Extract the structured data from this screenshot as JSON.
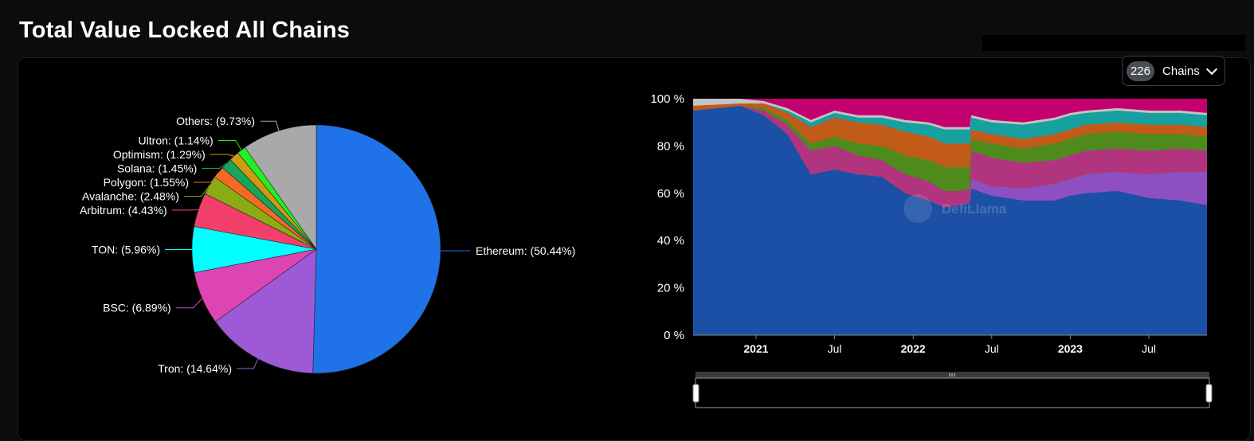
{
  "page": {
    "title": "Total Value Locked All Chains"
  },
  "controls": {
    "chains_count": "226",
    "chains_label": "Chains"
  },
  "watermark": "DefiLlama",
  "chart_data": [
    {
      "type": "pie",
      "slices": [
        {
          "name": "Ethereum",
          "percent": 50.44,
          "label": "Ethereum: (50.44%)",
          "color": "#1f72e8"
        },
        {
          "name": "Tron",
          "percent": 14.64,
          "label": "Tron: (14.64%)",
          "color": "#9e5ad6"
        },
        {
          "name": "BSC",
          "percent": 6.89,
          "label": "BSC: (6.89%)",
          "color": "#dd44b4"
        },
        {
          "name": "TON",
          "percent": 5.96,
          "label": "TON: (5.96%)",
          "color": "#00ffff"
        },
        {
          "name": "Arbitrum",
          "percent": 4.43,
          "label": "Arbitrum: (4.43%)",
          "color": "#f2406a"
        },
        {
          "name": "Avalanche",
          "percent": 2.48,
          "label": "Avalanche: (2.48%)",
          "color": "#8aab13"
        },
        {
          "name": "Polygon",
          "percent": 1.55,
          "label": "Polygon: (1.55%)",
          "color": "#f46a25"
        },
        {
          "name": "Solana",
          "percent": 1.45,
          "label": "Solana: (1.45%)",
          "color": "#17a558"
        },
        {
          "name": "Optimism",
          "percent": 1.29,
          "label": "Optimism: (1.29%)",
          "color": "#d09a10"
        },
        {
          "name": "Ultron",
          "percent": 1.14,
          "label": "Ultron: (1.14%)",
          "color": "#22f022"
        },
        {
          "name": "Others",
          "percent": 9.73,
          "label": "Others: (9.73%)",
          "color": "#a9a9a9"
        }
      ]
    },
    {
      "type": "area",
      "stacked": "percent",
      "yticks": [
        "0 %",
        "20 %",
        "40 %",
        "60 %",
        "80 %",
        "100 %"
      ],
      "ylim": [
        0,
        100
      ],
      "xticks": [
        {
          "label": "2021",
          "t": 2021.0,
          "bold": true
        },
        {
          "label": "Jul",
          "t": 2021.5,
          "bold": false
        },
        {
          "label": "2022",
          "t": 2022.0,
          "bold": true
        },
        {
          "label": "Jul",
          "t": 2022.5,
          "bold": false
        },
        {
          "label": "2023",
          "t": 2023.0,
          "bold": true
        },
        {
          "label": "Jul",
          "t": 2023.5,
          "bold": false
        }
      ],
      "xlim": [
        2020.6,
        2023.87
      ],
      "x": [
        2020.6,
        2020.9,
        2021.05,
        2021.2,
        2021.35,
        2021.5,
        2021.65,
        2021.8,
        2021.95,
        2022.1,
        2022.2,
        2022.3,
        2022.36,
        2022.37,
        2022.5,
        2022.7,
        2022.9,
        2023.0,
        2023.1,
        2023.3,
        2023.5,
        2023.7,
        2023.87
      ],
      "series": [
        {
          "color": "#1c4fa6",
          "values": [
            95,
            97,
            93,
            85,
            68,
            70,
            68,
            67,
            60,
            57,
            54,
            55,
            56,
            62,
            59,
            57,
            57,
            59,
            60,
            61,
            58,
            57,
            55
          ]
        },
        {
          "color": "#8e4fc2",
          "values": [
            0,
            0,
            0,
            0,
            0,
            0,
            0,
            0,
            0,
            0,
            0,
            0,
            0,
            4,
            4,
            5,
            7,
            7,
            8,
            8,
            10,
            12,
            14
          ]
        },
        {
          "color": "#b1357e",
          "values": [
            0,
            0,
            2,
            4,
            10,
            10,
            8,
            7,
            8,
            8,
            7,
            6,
            6,
            12,
            12,
            11,
            10,
            10,
            10,
            10,
            10,
            10,
            9
          ]
        },
        {
          "color": "#4f8a1c",
          "values": [
            0,
            0,
            1,
            2,
            3,
            4,
            5,
            6,
            8,
            9,
            10,
            10,
            9,
            5,
            6,
            6,
            7,
            7,
            7,
            7,
            7,
            6,
            6
          ]
        },
        {
          "color": "#c25a18",
          "values": [
            2,
            1,
            2,
            3,
            7,
            8,
            9,
            9,
            10,
            10,
            10,
            10,
            10,
            4,
            4,
            4,
            4,
            4,
            4,
            4,
            4,
            4,
            4
          ]
        },
        {
          "color": "#17a0a0",
          "values": [
            0,
            0,
            0,
            1,
            2,
            2,
            2,
            3,
            4,
            5,
            6,
            6,
            6,
            5,
            5,
            6,
            6,
            6,
            5,
            5,
            5,
            5,
            5
          ]
        },
        {
          "color": "#c4c4c4",
          "values": [
            3,
            2,
            1,
            1,
            1,
            1,
            1,
            1,
            1,
            1,
            1,
            1,
            1,
            1,
            1,
            1,
            1,
            1,
            1,
            1,
            1,
            1,
            1
          ]
        },
        {
          "color": "#c4006e",
          "values": [
            0,
            0,
            1,
            4,
            9,
            5,
            7,
            7,
            9,
            10,
            12,
            12,
            12,
            7,
            9,
            10,
            8,
            6,
            5,
            4,
            5,
            5,
            6
          ]
        }
      ]
    }
  ]
}
